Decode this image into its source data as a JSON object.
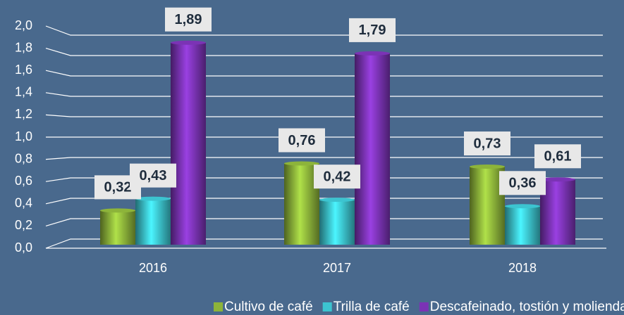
{
  "chart_data": {
    "type": "bar",
    "categories": [
      "2016",
      "2017",
      "2018"
    ],
    "series": [
      {
        "name": "Cultivo de café",
        "color": "#8db43a",
        "values": [
          0.32,
          0.76,
          0.73
        ],
        "value_labels": [
          "0,32",
          "0,76",
          "0,73"
        ]
      },
      {
        "name": "Trilla de café",
        "color": "#3cc4d0",
        "values": [
          0.43,
          0.42,
          0.36
        ],
        "value_labels": [
          "0,43",
          "0,42",
          "0,36"
        ]
      },
      {
        "name": "Descafeinado, tostión y molienda de café",
        "color": "#7b33b5",
        "values": [
          1.89,
          1.79,
          0.61
        ],
        "value_labels": [
          "1,89",
          "1,79",
          "0,61"
        ]
      }
    ],
    "ylim": [
      0,
      2
    ],
    "yticks": [
      {
        "value": 0,
        "label": "0,0"
      },
      {
        "value": 0.2,
        "label": "0,2"
      },
      {
        "value": 0.4,
        "label": "0,4"
      },
      {
        "value": 0.6,
        "label": "0,6"
      },
      {
        "value": 0.8,
        "label": "0,8"
      },
      {
        "value": 1.0,
        "label": "1,0"
      },
      {
        "value": 1.2,
        "label": "1,2"
      },
      {
        "value": 1.4,
        "label": "1,4"
      },
      {
        "value": 1.6,
        "label": "1,6"
      },
      {
        "value": 1.8,
        "label": "1,8"
      },
      {
        "value": 2.0,
        "label": "2,0"
      }
    ],
    "grid": true,
    "legend": "bottom"
  }
}
